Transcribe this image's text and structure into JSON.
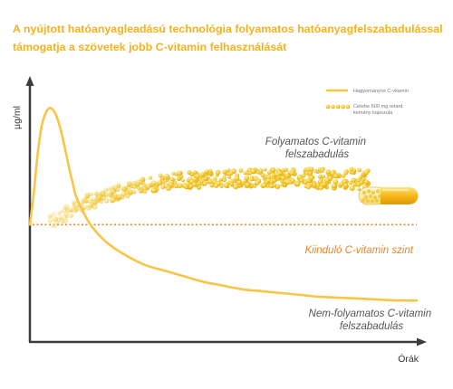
{
  "header": {
    "title_line1": "A nyújtott hatóanyagleadású technológia folyamatos hatóanyagfelszabadulással",
    "title_line2": "támogatja a szövetek jobb C-vitamin felhasználását"
  },
  "colors": {
    "curve": "#f8c544",
    "dots": "#f2c62a",
    "baseline": "#e8872a",
    "axis": "#3c3c3c",
    "title": "#f5b21b"
  },
  "chart_data": {
    "type": "line",
    "ylabel": "µg/ml",
    "xlabel": "Órák",
    "baseline_label": "Kiinduló C-vitamin szint",
    "legend": {
      "placement": "top-right",
      "items": [
        {
          "label": "Hagyományos C-vitamin",
          "marker": "line"
        },
        {
          "label_lines": [
            "Cetebe 500 mg retard",
            "kemény kapszula"
          ],
          "marker": "dots"
        }
      ]
    },
    "annotations": {
      "continuous": [
        "Folyamatos C-vitamin",
        "felszabadulás"
      ],
      "noncontinuous": [
        "Nem-folyamatos C-vitamin",
        "felszabadulás"
      ]
    },
    "series": [
      {
        "name": "Hagyományos C-vitamin",
        "x": [
          0,
          1,
          2,
          3,
          4,
          5,
          6,
          7,
          8,
          9,
          10,
          11,
          12,
          14,
          16,
          19,
          22,
          26,
          30,
          35,
          40,
          45,
          50,
          55,
          60,
          65,
          70,
          75,
          80,
          85,
          90,
          95,
          100
        ],
        "y": [
          35,
          52,
          73,
          88,
          95,
          98,
          97,
          93,
          86,
          77,
          67,
          58,
          50,
          41,
          34,
          27,
          22,
          17,
          13,
          10,
          7,
          4,
          2,
          0,
          -1,
          -2,
          -3,
          -4,
          -4.5,
          -5,
          -5.5,
          -6,
          -6
        ]
      },
      {
        "name": "Cetebe 500 mg retard kemény kapszula",
        "x": [
          5,
          10,
          15,
          20,
          25,
          30,
          35,
          40,
          45,
          50,
          55,
          60,
          65,
          70,
          75,
          80,
          85,
          88
        ],
        "y": [
          36,
          42,
          47,
          51,
          54,
          56.5,
          58,
          59,
          59.5,
          60,
          60,
          60,
          60,
          60,
          60,
          60,
          59.5,
          59
        ]
      }
    ],
    "baseline_y": 35,
    "xlim": [
      0,
      100
    ],
    "ylim": [
      -25,
      110
    ],
    "grid": false
  }
}
